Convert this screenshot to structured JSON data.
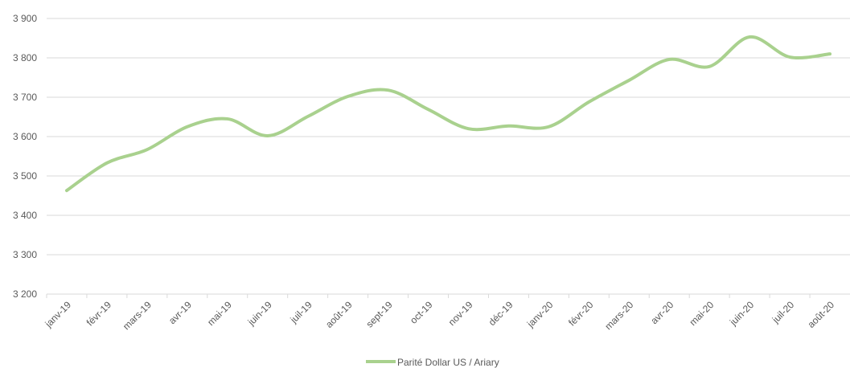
{
  "chart_data": {
    "type": "line",
    "categories": [
      "janv-19",
      "févr-19",
      "mars-19",
      "avr-19",
      "mai-19",
      "juin-19",
      "juil-19",
      "août-19",
      "sept-19",
      "oct-19",
      "nov-19",
      "déc-19",
      "janv-20",
      "févr-20",
      "mars-20",
      "avr-20",
      "mai-20",
      "juin-20",
      "juil-20",
      "août-20"
    ],
    "series": [
      {
        "name": "Parité Dollar US / Ariary",
        "color": "#a9d18e",
        "values": [
          3463,
          3533,
          3567,
          3625,
          3645,
          3602,
          3651,
          3702,
          3718,
          3669,
          3620,
          3627,
          3625,
          3688,
          3743,
          3796,
          3778,
          3853,
          3802,
          3810
        ]
      }
    ],
    "ylim": [
      3200,
      3900
    ],
    "yticks": [
      {
        "value": 3200,
        "label": "3 200"
      },
      {
        "value": 3300,
        "label": "3 300"
      },
      {
        "value": 3400,
        "label": "3 400"
      },
      {
        "value": 3500,
        "label": "3 500"
      },
      {
        "value": 3600,
        "label": "3 600"
      },
      {
        "value": 3700,
        "label": "3 700"
      },
      {
        "value": 3800,
        "label": "3 800"
      },
      {
        "value": 3900,
        "label": "3 900"
      }
    ],
    "grid": true,
    "smooth": true,
    "legend": "bottom"
  }
}
